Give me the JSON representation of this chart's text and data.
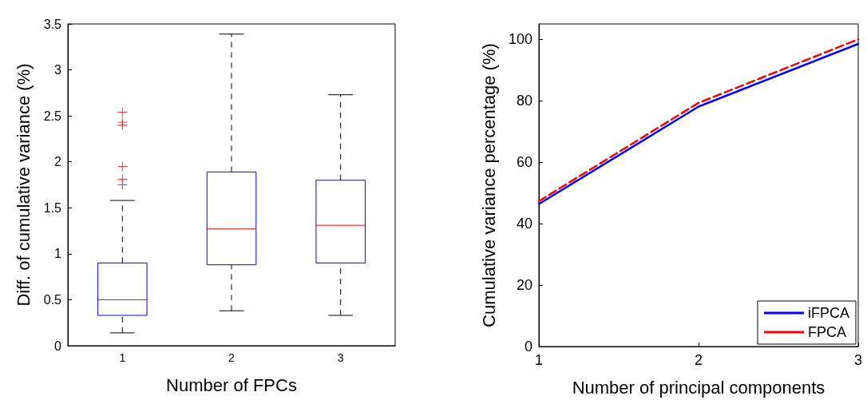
{
  "chart_data": [
    {
      "type": "box",
      "categories": [
        "1",
        "2",
        "3"
      ],
      "xlabel": "Number of FPCs",
      "ylabel": "Diff. of cumulative variance (%)",
      "ylim": [
        0,
        3.5
      ],
      "yticks": [
        0,
        0.5,
        1,
        1.5,
        2,
        2.5,
        3,
        3.5
      ],
      "grid": false,
      "boxes": [
        {
          "low": 0.14,
          "q1": 0.33,
          "median": 0.5,
          "q3": 0.9,
          "high": 1.58,
          "outliers": [
            2.54,
            2.43,
            2.4,
            1.95,
            1.81,
            1.75
          ]
        },
        {
          "low": 0.38,
          "q1": 0.88,
          "median": 1.27,
          "q3": 1.89,
          "high": 3.39
        },
        {
          "low": 0.33,
          "q1": 0.9,
          "median": 1.31,
          "q3": 1.8,
          "high": 2.73
        }
      ]
    },
    {
      "type": "line",
      "xlabel": "Number of principal components",
      "ylabel": "Cumulative variance percentage (%)",
      "x": [
        1,
        2,
        3
      ],
      "xlim": [
        1,
        3
      ],
      "xticks": [
        1,
        2,
        3
      ],
      "ylim": [
        0,
        105
      ],
      "yticks": [
        0,
        20,
        40,
        60,
        80,
        100
      ],
      "grid": false,
      "legend": "bottom right",
      "marker": "none",
      "series": [
        {
          "name": "iFPCA",
          "color": "#0000ff",
          "line_style": "solid",
          "values": [
            46.4,
            78.1,
            98.5
          ]
        },
        {
          "name": "FPCA",
          "color": "#ff0000",
          "line_style": "dashed",
          "values": [
            47.3,
            79.3,
            100
          ]
        }
      ]
    }
  ]
}
